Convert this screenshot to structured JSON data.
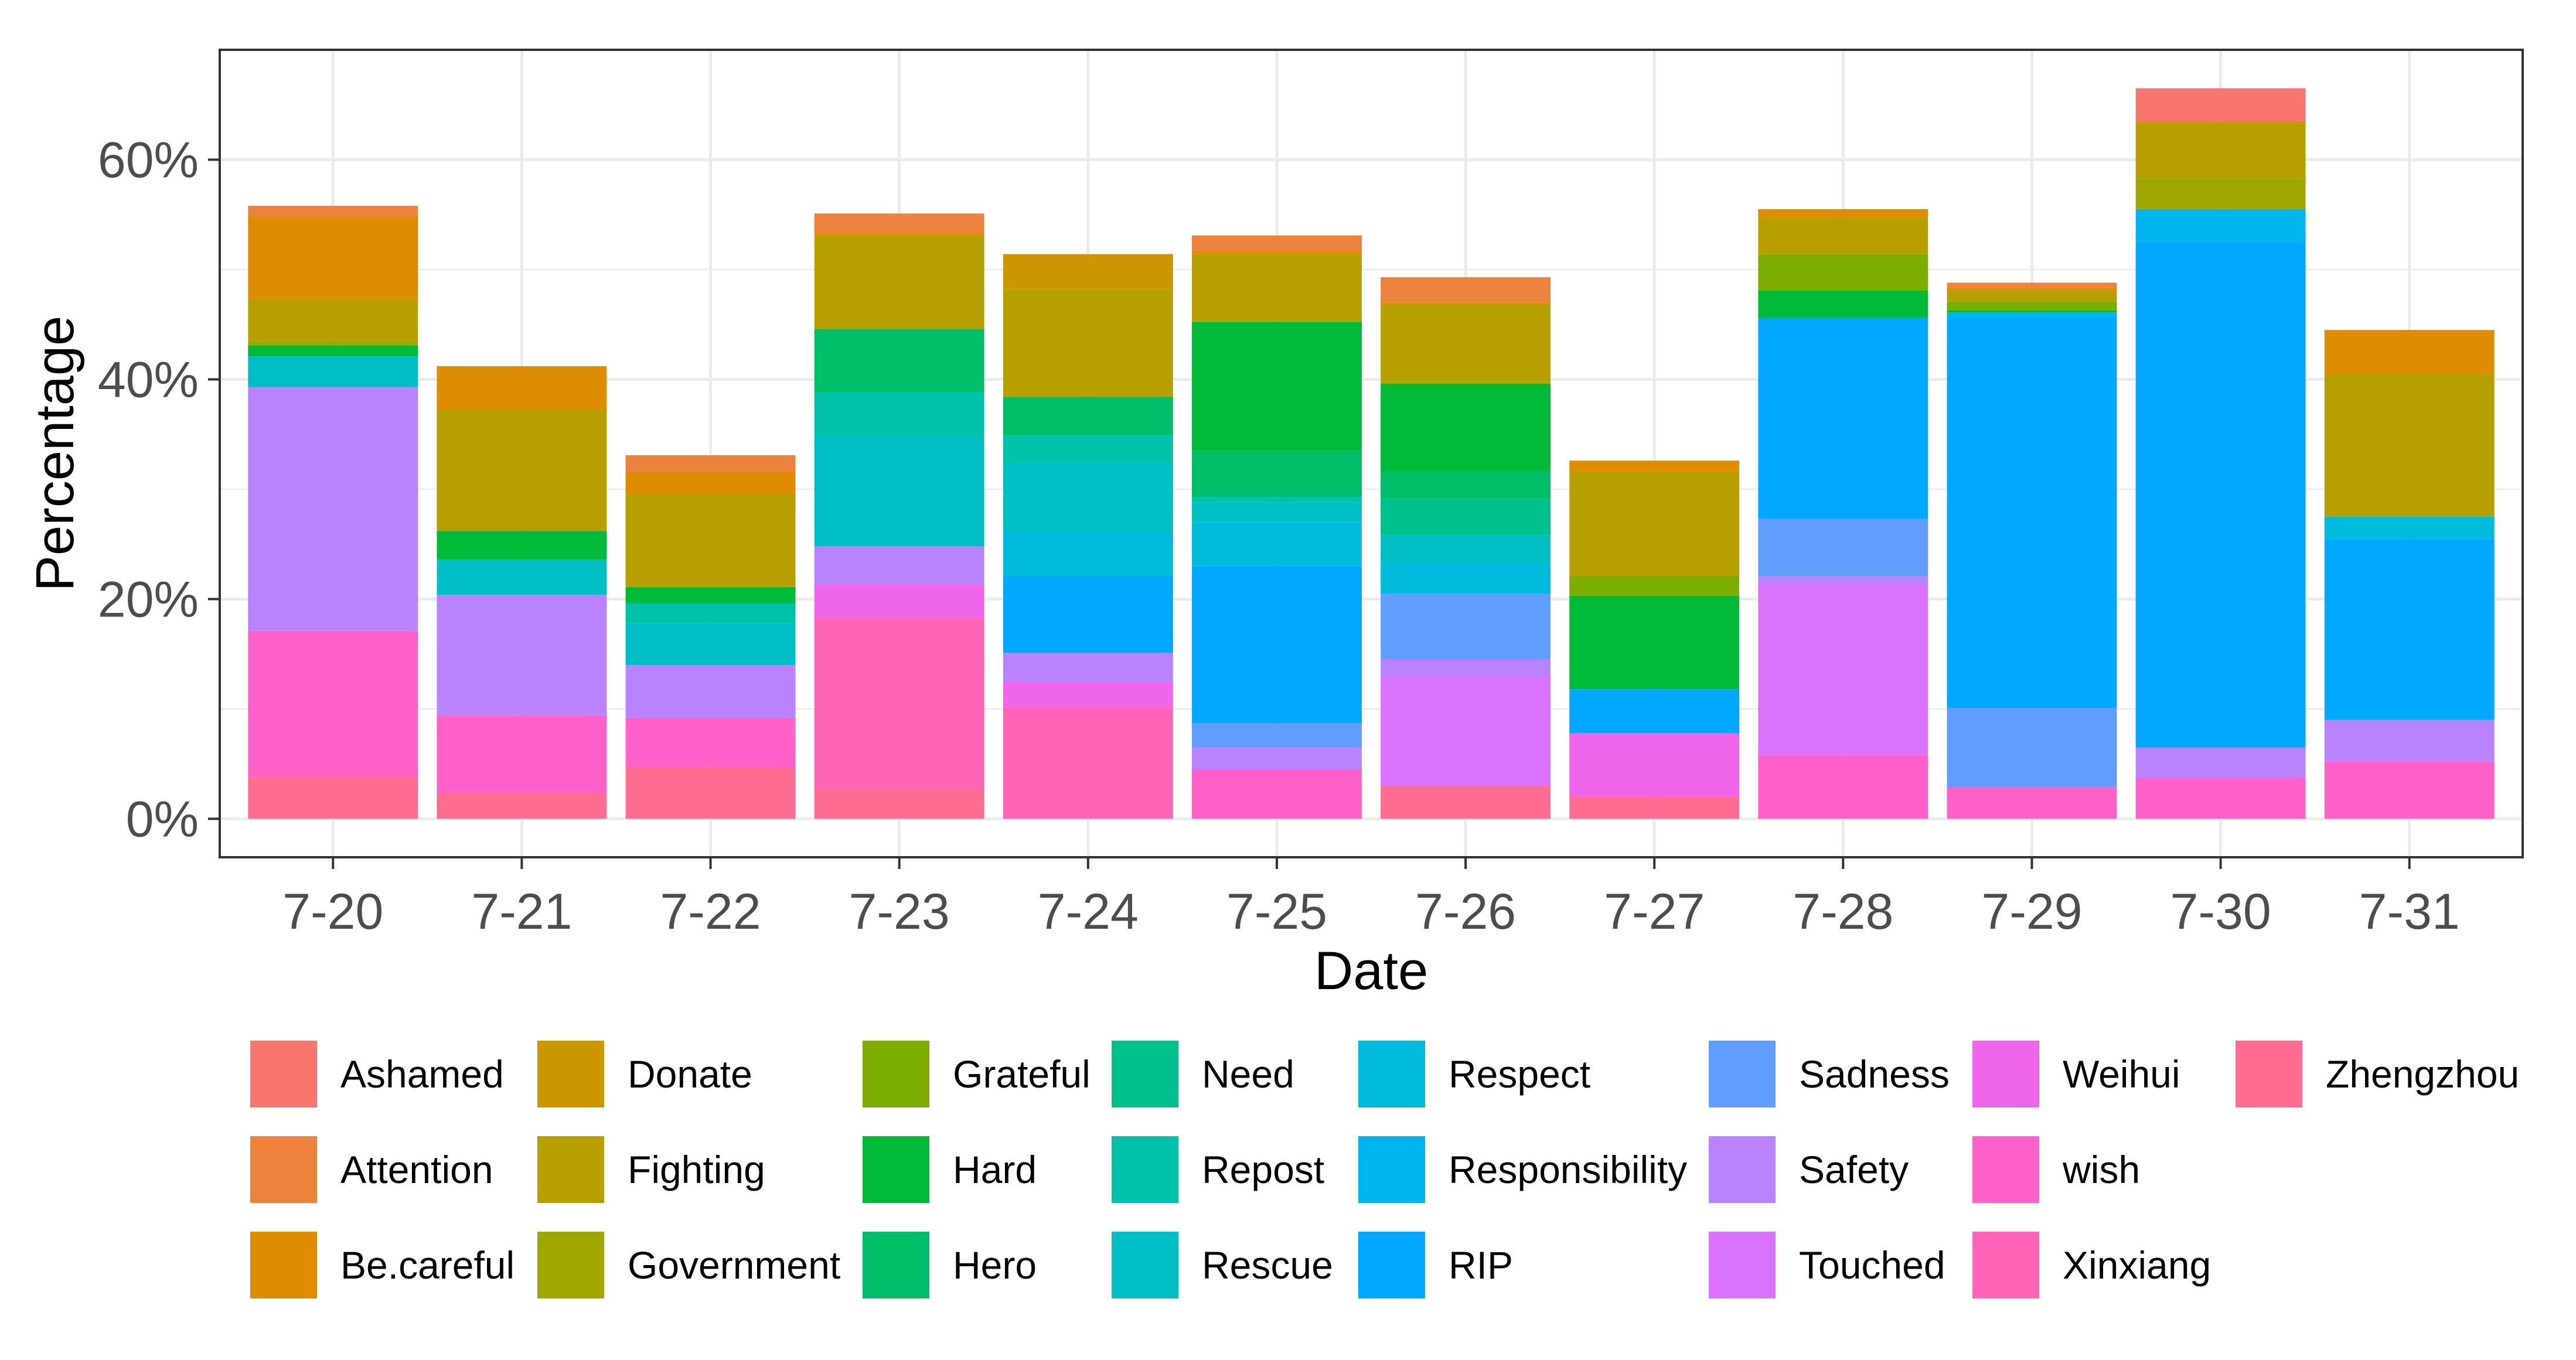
{
  "chart_data": {
    "type": "bar",
    "stacked": true,
    "title": "",
    "xlabel": "Date",
    "ylabel": "Percentage",
    "ylim": [
      -3.5,
      70
    ],
    "yticks": [
      0,
      20,
      40,
      60
    ],
    "ytick_labels": [
      "0%",
      "20%",
      "40%",
      "60%"
    ],
    "grid": true,
    "legend_position": "bottom",
    "categories": [
      "7-20",
      "7-21",
      "7-22",
      "7-23",
      "7-24",
      "7-25",
      "7-26",
      "7-27",
      "7-28",
      "7-29",
      "7-30",
      "7-31"
    ],
    "series": [
      {
        "name": "Ashamed",
        "color": "#F8766D",
        "values": [
          0,
          0,
          0,
          0,
          0,
          0,
          0,
          0,
          0,
          0,
          3.0,
          0
        ]
      },
      {
        "name": "Attention",
        "color": "#EC823C",
        "values": [
          1.0,
          0,
          1.5,
          1.8,
          0,
          1.5,
          2.3,
          0,
          0,
          0.5,
          0,
          0
        ]
      },
      {
        "name": "Be.careful",
        "color": "#DE8C00",
        "values": [
          7.5,
          4.0,
          2.0,
          0.2,
          0.2,
          0.2,
          0.2,
          1.0,
          0.8,
          0.2,
          0.2,
          4.0
        ]
      },
      {
        "name": "Donate",
        "color": "#CC9600",
        "values": [
          0,
          0,
          0,
          0,
          3.0,
          0,
          0,
          0,
          0,
          0,
          0,
          0
        ]
      },
      {
        "name": "Fighting",
        "color": "#B79F00",
        "values": [
          3.8,
          11.0,
          8.5,
          8.5,
          9.8,
          6.0,
          7.0,
          9.5,
          3.3,
          1.0,
          5.0,
          13.0
        ]
      },
      {
        "name": "Government",
        "color": "#9DA700",
        "values": [
          0.4,
          0,
          0,
          0,
          0,
          0.2,
          0.2,
          0,
          0,
          0,
          2.8,
          0
        ]
      },
      {
        "name": "Grateful",
        "color": "#7CAE00",
        "values": [
          0,
          0,
          0,
          0,
          0,
          0,
          0,
          1.8,
          3.3,
          0.8,
          0,
          0
        ]
      },
      {
        "name": "Hard",
        "color": "#00BA38",
        "values": [
          1.0,
          2.6,
          1.5,
          0,
          0,
          11.7,
          8.0,
          8.5,
          2.5,
          0.2,
          0,
          0
        ]
      },
      {
        "name": "Hero",
        "color": "#00BE67",
        "values": [
          0,
          0,
          0,
          5.8,
          3.5,
          4.2,
          2.5,
          0,
          0,
          0,
          0,
          0
        ]
      },
      {
        "name": "Need",
        "color": "#00C08B",
        "values": [
          0,
          0,
          0,
          0,
          0,
          0,
          3.3,
          0,
          0,
          0,
          0,
          0
        ]
      },
      {
        "name": "Repost",
        "color": "#00C1A9",
        "values": [
          0,
          0,
          1.8,
          4.0,
          2.5,
          0.5,
          0,
          0,
          0,
          0,
          0,
          0
        ]
      },
      {
        "name": "Rescue",
        "color": "#00BFC4",
        "values": [
          2.8,
          3.2,
          3.8,
          10.0,
          6.3,
          1.8,
          2.5,
          0,
          0,
          0,
          0,
          0
        ]
      },
      {
        "name": "Respect",
        "color": "#00BBDB",
        "values": [
          0,
          0,
          0,
          0,
          4.0,
          4.0,
          2.8,
          0,
          0,
          0,
          0,
          2.0
        ]
      },
      {
        "name": "Responsibility",
        "color": "#00B4F0",
        "values": [
          0,
          0,
          0,
          0,
          0,
          0,
          0,
          0,
          0,
          0.5,
          3.0,
          0
        ]
      },
      {
        "name": "RIP",
        "color": "#00A9FF",
        "values": [
          0,
          0,
          0,
          0,
          7.0,
          14.3,
          0,
          4.0,
          18.3,
          35.5,
          46.0,
          16.5
        ]
      },
      {
        "name": "Sadness",
        "color": "#619CFF",
        "values": [
          0,
          0,
          0,
          0,
          0,
          2.2,
          6.0,
          0,
          5.2,
          7.2,
          0,
          0
        ]
      },
      {
        "name": "Safety",
        "color": "#B983FF",
        "values": [
          22.2,
          11.0,
          4.8,
          3.5,
          2.6,
          2.0,
          1.5,
          0,
          0.8,
          0,
          2.8,
          3.8
        ]
      },
      {
        "name": "Touched",
        "color": "#DB72FB",
        "values": [
          0,
          0,
          0,
          0,
          0,
          0,
          10.0,
          0,
          15.5,
          0,
          0,
          0
        ]
      },
      {
        "name": "Weihui",
        "color": "#F066EA",
        "values": [
          0,
          0,
          0,
          3.0,
          2.4,
          0,
          0,
          5.8,
          0,
          0,
          0,
          0
        ]
      },
      {
        "name": "wish",
        "color": "#FF61C9",
        "values": [
          13.3,
          7.0,
          4.5,
          0,
          0,
          4.5,
          0,
          0,
          5.8,
          2.9,
          3.7,
          5.2
        ]
      },
      {
        "name": "Xinxiang",
        "color": "#FF63B6",
        "values": [
          0,
          0,
          0,
          15.5,
          10.1,
          0,
          0,
          0,
          0,
          0,
          0,
          0
        ]
      },
      {
        "name": "Zhengzhou",
        "color": "#FF6C91",
        "values": [
          3.8,
          2.4,
          4.7,
          2.8,
          0,
          0,
          3.0,
          2.0,
          0,
          0,
          0,
          0
        ]
      }
    ]
  }
}
